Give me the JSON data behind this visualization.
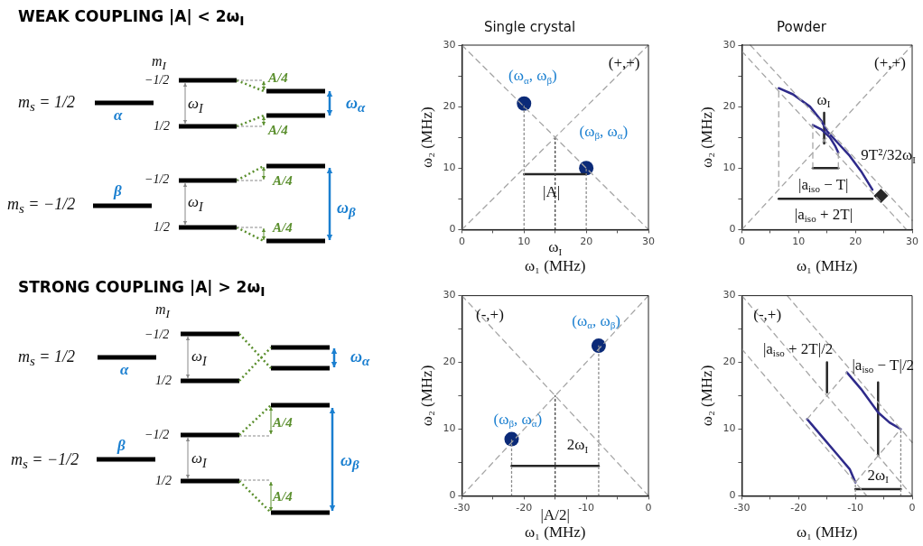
{
  "chart_data": [
    {
      "type": "other",
      "title": "WEAK COUPLING   |A| < 2ω$_{I}$",
      "annotations": [
        "m$_{I}$",
        "−1/2",
        "1/2",
        "m$_{s}$ = 1/2",
        "α",
        "ω$_{I}$",
        "A/4",
        "A/4",
        "ω$_{α}$",
        "−1/2",
        "1/2",
        "m$_{s}$ = −1/2",
        "β",
        "ω$_{I}$",
        "A/4",
        "A/4",
        "ω$_{β}$"
      ]
    },
    {
      "type": "scatter",
      "title": "Single crystal",
      "xlabel": "ω₁ (MHz)",
      "ylabel": "ω₂ (MHz)",
      "xlim": [
        0,
        30
      ],
      "ylim": [
        0,
        30
      ],
      "xticks": [
        0,
        {
          "value": 5,
          "label": null
        },
        10,
        {
          "value": 15,
          "label": null
        },
        20,
        {
          "value": 25,
          "label": null
        },
        30
      ],
      "yticks": [
        0,
        {
          "value": 5,
          "label": null
        },
        10,
        {
          "value": 15,
          "label": null
        },
        20,
        {
          "value": 25,
          "label": null
        },
        30
      ],
      "grid": false,
      "legend": false,
      "series": [
        {
          "type": "line",
          "x": [
            0,
            30
          ],
          "values": [
            0,
            30
          ],
          "color": "#a6a6a6",
          "line_style": "dashed"
        },
        {
          "type": "line",
          "x": [
            0,
            30
          ],
          "values": [
            30,
            0
          ],
          "color": "#a6a6a6",
          "line_style": "dashed"
        },
        {
          "type": "line",
          "x": [
            10,
            10
          ],
          "values": [
            0,
            20.5
          ],
          "color": "#8c8c8c",
          "line_style": "dotted"
        },
        {
          "type": "line",
          "x": [
            20,
            20
          ],
          "values": [
            0,
            10
          ],
          "color": "#8c8c8c",
          "line_style": "dotted"
        },
        {
          "type": "line",
          "x": [
            15,
            15
          ],
          "values": [
            0,
            15
          ],
          "color": "#404040",
          "line_style": "dotted"
        },
        {
          "type": "line",
          "x": [
            10,
            20
          ],
          "values": [
            9,
            9
          ],
          "color": "#262626",
          "line_style": "solid"
        },
        {
          "type": "scatter",
          "x": [
            10,
            20
          ],
          "values": [
            20.5,
            10
          ],
          "color": "#0b2a78",
          "marker": "circle"
        }
      ],
      "annotations": [
        "(+,+)",
        "(ω$_{α}$, ω$_{β}$)",
        "(ω$_{β}$, ω$_{α}$)",
        "|A|",
        "ω$_{I}$"
      ]
    },
    {
      "type": "line",
      "title": "Powder",
      "xlabel": "ω₁ (MHz)",
      "ylabel": "ω₂ (MHz)",
      "xlim": [
        0,
        30
      ],
      "ylim": [
        0,
        30
      ],
      "xticks": [
        0,
        {
          "value": 5,
          "label": null
        },
        10,
        {
          "value": 15,
          "label": null
        },
        20,
        {
          "value": 25,
          "label": null
        },
        30
      ],
      "yticks": [
        0,
        {
          "value": 5,
          "label": null
        },
        10,
        {
          "value": 15,
          "label": null
        },
        20,
        {
          "value": 25,
          "label": null
        },
        30
      ],
      "grid": false,
      "legend": false,
      "series": [
        {
          "type": "line",
          "x": [
            0,
            30
          ],
          "values": [
            0,
            30
          ],
          "color": "#a6a6a6",
          "line_style": "dashed"
        },
        {
          "type": "line",
          "x": [
            0,
            29
          ],
          "values": [
            29,
            0
          ],
          "color": "#a6a6a6",
          "line_style": "dashed"
        },
        {
          "type": "line",
          "x": [
            1.5,
            30
          ],
          "values": [
            30,
            1.5
          ],
          "color": "#a6a6a6",
          "line_style": "dashed"
        },
        {
          "type": "line",
          "x": [
            6.5,
            6.5
          ],
          "values": [
            7,
            23
          ],
          "color": "#a6a6a6",
          "line_style": "dashed"
        },
        {
          "type": "line",
          "x": [
            12.5,
            12.5
          ],
          "values": [
            10,
            17
          ],
          "color": "#a6a6a6",
          "line_style": "dashed"
        },
        {
          "type": "line",
          "x": [
            17,
            17
          ],
          "values": [
            10,
            12.5
          ],
          "color": "#a6a6a6",
          "line_style": "dashed"
        },
        {
          "type": "line",
          "x": [
            6.5,
            9,
            12,
            14,
            15,
            17,
            19,
            21,
            23
          ],
          "values": [
            23,
            22,
            20,
            17.7,
            16,
            14,
            12,
            9.5,
            6.5
          ],
          "color": "#2e2a8a",
          "line_style": "solid"
        },
        {
          "type": "line",
          "x": [
            12.5,
            14,
            15.5,
            16.5,
            17
          ],
          "values": [
            17,
            16.3,
            15,
            13.5,
            12.5
          ],
          "color": "#2e2a8a",
          "line_style": "solid"
        },
        {
          "type": "line",
          "x": [
            12.5,
            17
          ],
          "values": [
            10,
            10
          ],
          "color": "#262626",
          "line_style": "solid"
        },
        {
          "type": "line",
          "x": [
            6.5,
            23
          ],
          "values": [
            5,
            5
          ],
          "color": "#262626",
          "line_style": "solid"
        },
        {
          "type": "line",
          "x": [
            14.5,
            14.5
          ],
          "values": [
            19,
            14
          ],
          "color": "#262626",
          "line_style": "solid"
        },
        {
          "type": "scatter",
          "x": [
            24.5
          ],
          "values": [
            5.5
          ],
          "color": "#262626",
          "marker": "diamond"
        }
      ],
      "annotations": [
        "(+,+)",
        "ω$_{I}$",
        "|a$_{iso}$ − T|",
        "|a$_{iso}$ + 2T|",
        "9T²/32ω$_{I}$"
      ]
    },
    {
      "type": "other",
      "title": "STRONG COUPLING   |A| > 2ω$_{I}$",
      "annotations": [
        "m$_{I}$",
        "−1/2",
        "1/2",
        "m$_{s}$ = 1/2",
        "α",
        "ω$_{I}$",
        "ω$_{α}$",
        "−1/2",
        "1/2",
        "m$_{s}$ = −1/2",
        "β",
        "ω$_{I}$",
        "A/4",
        "A/4",
        "ω$_{β}$"
      ]
    },
    {
      "type": "scatter",
      "xlabel": "ω₁ (MHz)",
      "ylabel": "ω₂ (MHz)",
      "xlim": [
        -30,
        0
      ],
      "ylim": [
        0,
        30
      ],
      "xticks": [
        -30,
        {
          "value": -25,
          "label": null
        },
        -20,
        {
          "value": -15,
          "label": null
        },
        -10,
        {
          "value": -5,
          "label": null
        },
        0
      ],
      "yticks": [
        0,
        {
          "value": 5,
          "label": null
        },
        10,
        {
          "value": 15,
          "label": null
        },
        20,
        {
          "value": 25,
          "label": null
        },
        30
      ],
      "grid": false,
      "legend": false,
      "series": [
        {
          "type": "line",
          "x": [
            -30,
            0
          ],
          "values": [
            0,
            30
          ],
          "color": "#a6a6a6",
          "line_style": "dashed"
        },
        {
          "type": "line",
          "x": [
            -30,
            0
          ],
          "values": [
            30,
            0
          ],
          "color": "#a6a6a6",
          "line_style": "dashed"
        },
        {
          "type": "line",
          "x": [
            -22,
            -22
          ],
          "values": [
            0,
            8.5
          ],
          "color": "#8c8c8c",
          "line_style": "dotted"
        },
        {
          "type": "line",
          "x": [
            -8,
            -8
          ],
          "values": [
            0,
            22.5
          ],
          "color": "#8c8c8c",
          "line_style": "dotted"
        },
        {
          "type": "line",
          "x": [
            -15,
            -15
          ],
          "values": [
            0,
            15
          ],
          "color": "#404040",
          "line_style": "dotted"
        },
        {
          "type": "line",
          "x": [
            -22,
            -8
          ],
          "values": [
            4.5,
            4.5
          ],
          "color": "#262626",
          "line_style": "solid"
        },
        {
          "type": "scatter",
          "x": [
            -22,
            -8
          ],
          "values": [
            8.5,
            22.5
          ],
          "color": "#0b2a78",
          "marker": "circle"
        }
      ],
      "annotations": [
        "(-,+)",
        "(ω$_{α}$, ω$_{β}$)",
        "(ω$_{β}$, ω$_{α}$)",
        "2ω$_{I}$",
        "|A/2|"
      ]
    },
    {
      "type": "line",
      "xlabel": "ω₁ (MHz)",
      "ylabel": "ω₂ (MHz)",
      "xlim": [
        -30,
        0
      ],
      "ylim": [
        0,
        30
      ],
      "xticks": [
        -30,
        {
          "value": -25,
          "label": null
        },
        -20,
        {
          "value": -15,
          "label": null
        },
        -10,
        {
          "value": -5,
          "label": null
        },
        0
      ],
      "yticks": [
        0,
        {
          "value": 5,
          "label": null
        },
        10,
        {
          "value": 15,
          "label": null
        },
        20,
        {
          "value": 25,
          "label": null
        },
        30
      ],
      "grid": false,
      "legend": false,
      "series": [
        {
          "type": "line",
          "x": [
            -30,
            -8
          ],
          "values": [
            22,
            0
          ],
          "color": "#a6a6a6",
          "line_style": "dashed"
        },
        {
          "type": "line",
          "x": [
            -30,
            0
          ],
          "values": [
            30,
            0
          ],
          "color": "#a6a6a6",
          "line_style": "dashed"
        },
        {
          "type": "line",
          "x": [
            -22,
            0
          ],
          "values": [
            30,
            8
          ],
          "color": "#a6a6a6",
          "line_style": "dashed"
        },
        {
          "type": "line",
          "x": [
            -18.5,
            -11.5
          ],
          "values": [
            11.5,
            18.5
          ],
          "color": "#a6a6a6",
          "line_style": "dashed"
        },
        {
          "type": "line",
          "x": [
            -10,
            -2
          ],
          "values": [
            2,
            10
          ],
          "color": "#a6a6a6",
          "line_style": "dashed"
        },
        {
          "type": "line",
          "x": [
            -10,
            -10
          ],
          "values": [
            0,
            2
          ],
          "color": "#8c8c8c",
          "line_style": "dotted"
        },
        {
          "type": "line",
          "x": [
            -2,
            -2
          ],
          "values": [
            0,
            10
          ],
          "color": "#8c8c8c",
          "line_style": "dotted"
        },
        {
          "type": "line",
          "x": [
            -18.5,
            -16,
            -13,
            -11,
            -10
          ],
          "values": [
            11.5,
            9,
            6,
            4,
            2
          ],
          "color": "#2e2a8a",
          "line_style": "solid"
        },
        {
          "type": "line",
          "x": [
            -11.5,
            -9,
            -6,
            -4,
            -2
          ],
          "values": [
            18.5,
            16,
            12.5,
            11,
            10
          ],
          "color": "#2e2a8a",
          "line_style": "solid"
        },
        {
          "type": "line",
          "x": [
            -15,
            -15
          ],
          "values": [
            20,
            15.5
          ],
          "color": "#262626",
          "line_style": "solid"
        },
        {
          "type": "line",
          "x": [
            -6,
            -6
          ],
          "values": [
            17,
            6
          ],
          "color": "#262626",
          "line_style": "solid"
        },
        {
          "type": "line",
          "x": [
            -10,
            -2
          ],
          "values": [
            1,
            1
          ],
          "color": "#262626",
          "line_style": "solid"
        }
      ],
      "annotations": [
        "(-,+)",
        "|a$_{iso}$ + 2T|/2",
        "|a$_{iso}$ − T|/2",
        "2ω$_{I}$"
      ]
    }
  ]
}
